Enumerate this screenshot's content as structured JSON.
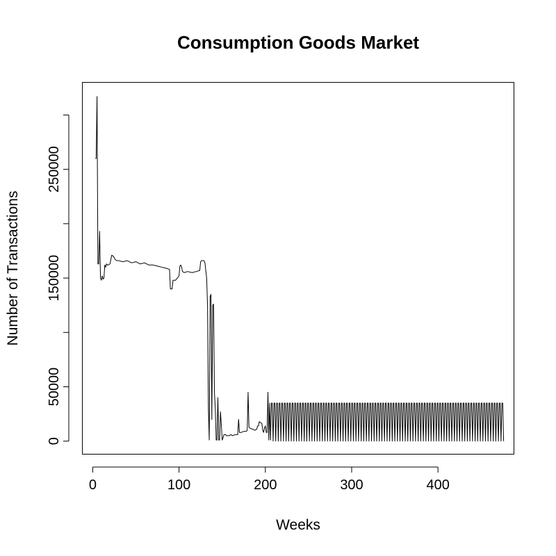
{
  "chart_data": {
    "type": "line",
    "title": "Consumption Goods Market",
    "xlabel": "Weeks",
    "ylabel": "Number of Transactions",
    "xlim": [
      -12,
      488
    ],
    "ylim": [
      -12000,
      330000
    ],
    "x_ticks": [
      0,
      100,
      200,
      300,
      400
    ],
    "y_ticks": [
      0,
      50000,
      100000,
      150000,
      200000,
      250000,
      300000
    ],
    "y_tick_labels": [
      "0",
      "50000",
      "",
      "150000",
      "",
      "250000",
      ""
    ],
    "grid": false,
    "series": [
      {
        "x": [
          3,
          4,
          5,
          6,
          7,
          8,
          9,
          10,
          11,
          12,
          13,
          14,
          15,
          16,
          17,
          18,
          20,
          22,
          24,
          26,
          28,
          30,
          35,
          40,
          45,
          50,
          55,
          60,
          65,
          70,
          75,
          80,
          85,
          89,
          90,
          91,
          92,
          93,
          94,
          96,
          98,
          100,
          101,
          102,
          103,
          104,
          106,
          110,
          115,
          120,
          124,
          125,
          126,
          127,
          128,
          129,
          130,
          132,
          133,
          134,
          135,
          136,
          137,
          138,
          139,
          140,
          141,
          142,
          143,
          144,
          145,
          146,
          147,
          148,
          149,
          150,
          151,
          152,
          153,
          154,
          155,
          158,
          160,
          162,
          165,
          168,
          169,
          170,
          172,
          175,
          178,
          179,
          180,
          181,
          182,
          185,
          188,
          190,
          191,
          192,
          193,
          194,
          195,
          196,
          197,
          198,
          199,
          200,
          201,
          202,
          203,
          204,
          205,
          206
        ],
        "y": [
          260000,
          260000,
          317000,
          163000,
          163000,
          193000,
          150000,
          148000,
          152000,
          149000,
          150000,
          162000,
          160000,
          163000,
          162000,
          162000,
          163000,
          171000,
          170000,
          167000,
          166000,
          166000,
          165000,
          166000,
          164000,
          165000,
          163000,
          164000,
          162000,
          162000,
          161000,
          160000,
          159000,
          158000,
          140000,
          140000,
          140000,
          148000,
          148000,
          148000,
          150000,
          152000,
          161000,
          162000,
          160000,
          156000,
          155000,
          156000,
          155000,
          156000,
          157000,
          165000,
          166000,
          166000,
          166000,
          166000,
          164000,
          150000,
          125000,
          30000,
          1000,
          133000,
          135000,
          20000,
          125000,
          126000,
          45000,
          30000,
          1000,
          1000,
          40000,
          1000,
          1000,
          27000,
          15000,
          1000,
          3000,
          6000,
          6000,
          6000,
          5000,
          5000,
          6000,
          5000,
          6000,
          6000,
          20000,
          8000,
          8000,
          9000,
          9000,
          10000,
          45000,
          13000,
          12000,
          11000,
          10000,
          11000,
          14000,
          14000,
          18000,
          17000,
          17000,
          16000,
          10000,
          8000,
          12000,
          14000,
          8000,
          8000,
          45000,
          1000,
          35000,
          1000
        ]
      }
    ],
    "periodic_segment": {
      "start_week": 207,
      "end_week": 475,
      "period_weeks": 3,
      "peak_value": 35000,
      "trough_value": 0
    }
  }
}
